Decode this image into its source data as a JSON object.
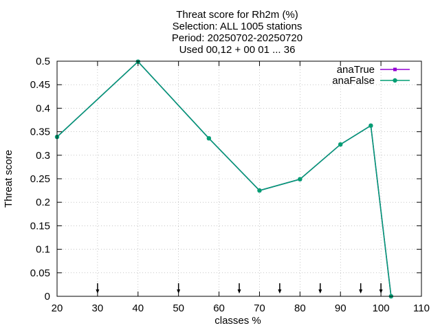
{
  "chart_data": {
    "type": "line",
    "title_lines": [
      "Threat score  for Rh2m (%)",
      "Selection: ALL    1005 stations",
      "Period: 20250702-20250720",
      "Used 00,12 + 00 01 ... 36"
    ],
    "xlabel": "classes %",
    "ylabel": "Threat score",
    "xlim": [
      20,
      110
    ],
    "ylim": [
      0,
      0.5
    ],
    "x_ticks": [
      20,
      30,
      40,
      50,
      60,
      70,
      80,
      90,
      100,
      110
    ],
    "y_ticks": [
      0,
      0.05,
      0.1,
      0.15,
      0.2,
      0.25,
      0.3,
      0.35,
      0.4,
      0.45,
      0.5
    ],
    "y_tick_labels": [
      "0",
      "0.05",
      "0.1",
      "0.15",
      "0.2",
      "0.25",
      "0.3",
      "0.35",
      "0.4",
      "0.45",
      "0.5"
    ],
    "grid": true,
    "legend_position": "top-right",
    "series": [
      {
        "name": "anaTrue",
        "color": "#9400d3",
        "x": [
          20,
          40,
          57.5,
          70,
          80,
          90,
          97.5,
          102.5
        ],
        "values": [
          0.339,
          0.499,
          0.336,
          0.225,
          0.249,
          0.323,
          0.363,
          0
        ]
      },
      {
        "name": "anaFalse",
        "color": "#009e73",
        "x": [
          20,
          40,
          57.5,
          70,
          80,
          90,
          97.5,
          102.5
        ],
        "values": [
          0.339,
          0.499,
          0.336,
          0.225,
          0.249,
          0.323,
          0.363,
          0
        ]
      }
    ],
    "class_markers_x": [
      30,
      50,
      65,
      75,
      85,
      95,
      100
    ]
  }
}
